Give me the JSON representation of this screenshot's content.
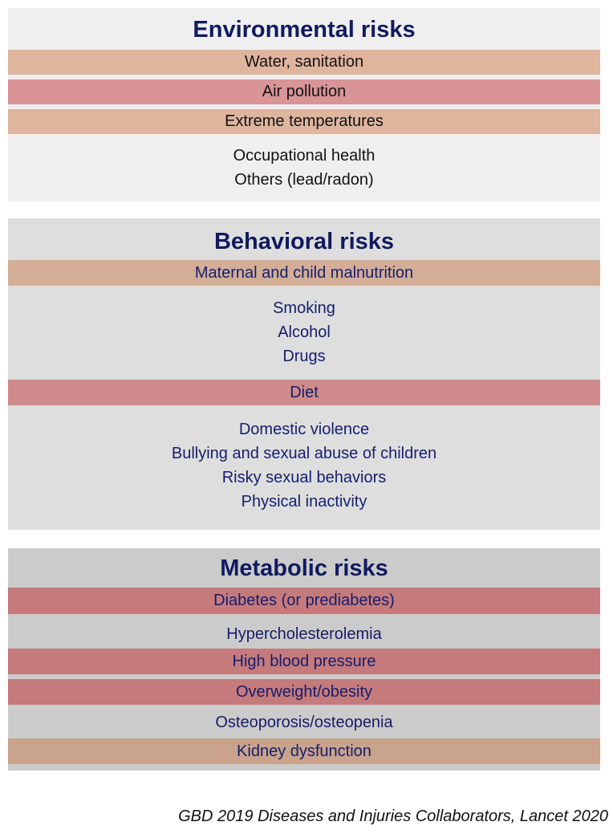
{
  "environmental": {
    "title": "Environmental risks",
    "bands": [
      "Water, sanitation",
      "Air pollution",
      "Extreme temperatures"
    ],
    "other_lines": [
      "Occupational health",
      "Others (lead/radon)"
    ]
  },
  "behavioral": {
    "title": "Behavioral risks",
    "band_malnutrition": "Maternal and child malnutrition",
    "group1": [
      "Smoking",
      "Alcohol",
      "Drugs"
    ],
    "band_diet": "Diet",
    "group2": [
      "Domestic violence",
      "Bullying and sexual abuse of children",
      "Risky sexual behaviors",
      "Physical inactivity"
    ]
  },
  "metabolic": {
    "title": "Metabolic risks",
    "rows": [
      "Diabetes (or prediabetes)",
      "Hypercholesterolemia",
      "High blood pressure",
      "Overweight/obesity",
      "Osteoporosis/osteopenia",
      "Kidney dysfunction"
    ]
  },
  "citation": "GBD 2019 Diseases and Injuries Collaborators, Lancet 2020",
  "colors": {
    "title_navy": "#101a5e",
    "peach": "#e0b59e",
    "rose": "#d99497",
    "metabolic_rose": "#c57a7c",
    "kidney_tan": "#c9a38b"
  }
}
